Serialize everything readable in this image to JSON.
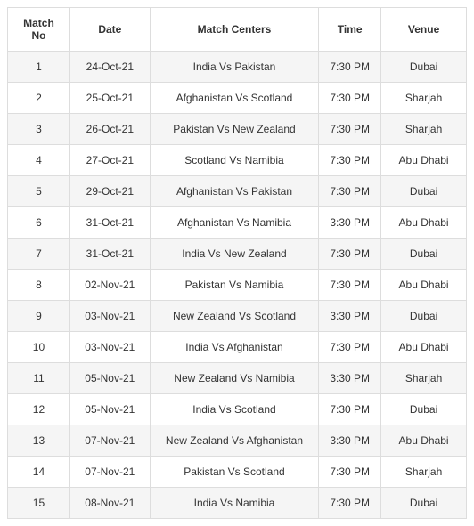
{
  "schedule": {
    "columns": [
      "Match No",
      "Date",
      "Match Centers",
      "Time",
      "Venue"
    ],
    "rows": [
      [
        "1",
        "24-Oct-21",
        "India Vs Pakistan",
        "7:30 PM",
        "Dubai"
      ],
      [
        "2",
        "25-Oct-21",
        "Afghanistan Vs Scotland",
        "7:30 PM",
        "Sharjah"
      ],
      [
        "3",
        "26-Oct-21",
        "Pakistan Vs New Zealand",
        "7:30 PM",
        "Sharjah"
      ],
      [
        "4",
        "27-Oct-21",
        "Scotland Vs Namibia",
        "7:30 PM",
        "Abu Dhabi"
      ],
      [
        "5",
        "29-Oct-21",
        "Afghanistan Vs Pakistan",
        "7:30 PM",
        "Dubai"
      ],
      [
        "6",
        "31-Oct-21",
        "Afghanistan Vs Namibia",
        "3:30 PM",
        "Abu Dhabi"
      ],
      [
        "7",
        "31-Oct-21",
        "India Vs New Zealand",
        "7:30 PM",
        "Dubai"
      ],
      [
        "8",
        "02-Nov-21",
        "Pakistan Vs Namibia",
        "7:30 PM",
        "Abu Dhabi"
      ],
      [
        "9",
        "03-Nov-21",
        "New Zealand Vs Scotland",
        "3:30 PM",
        "Dubai"
      ],
      [
        "10",
        "03-Nov-21",
        "India Vs Afghanistan",
        "7:30 PM",
        "Abu Dhabi"
      ],
      [
        "11",
        "05-Nov-21",
        "New Zealand Vs Namibia",
        "3:30 PM",
        "Sharjah"
      ],
      [
        "12",
        "05-Nov-21",
        "India Vs Scotland",
        "7:30 PM",
        "Dubai"
      ],
      [
        "13",
        "07-Nov-21",
        "New Zealand Vs Afghanistan",
        "3:30 PM",
        "Abu Dhabi"
      ],
      [
        "14",
        "07-Nov-21",
        "Pakistan Vs Scotland",
        "7:30 PM",
        "Sharjah"
      ],
      [
        "15",
        "08-Nov-21",
        "India Vs Namibia",
        "7:30 PM",
        "Dubai"
      ]
    ],
    "col_widths": [
      "70px",
      "90px",
      "190px",
      "70px",
      "96px"
    ]
  }
}
